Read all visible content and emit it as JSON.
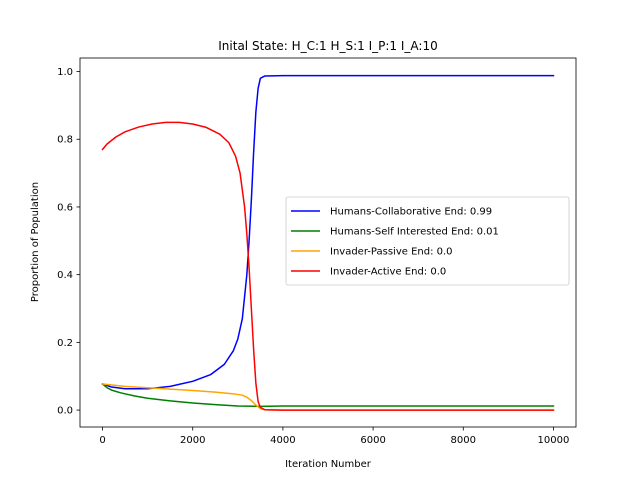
{
  "chart_data": {
    "type": "line",
    "title": "Inital State: H_C:1 H_S:1 I_P:1 I_A:10",
    "xlabel": "Iteration Number",
    "ylabel": "Proportion of Population",
    "xlim": [
      -500,
      10500
    ],
    "ylim": [
      -0.05,
      1.04
    ],
    "xticks": [
      0,
      2000,
      4000,
      6000,
      8000,
      10000
    ],
    "xtick_labels": [
      "0",
      "2000",
      "4000",
      "6000",
      "8000",
      "10000"
    ],
    "yticks": [
      0.0,
      0.2,
      0.4,
      0.6,
      0.8,
      1.0
    ],
    "ytick_labels": [
      "0.0",
      "0.2",
      "0.4",
      "0.6",
      "0.8",
      "1.0"
    ],
    "grid": false,
    "legend_position": "center-right",
    "series": [
      {
        "name": "Humans-Collaborative End: 0.99",
        "color": "#0000ff",
        "points": [
          [
            0,
            0.077
          ],
          [
            200,
            0.068
          ],
          [
            500,
            0.063
          ],
          [
            1000,
            0.063
          ],
          [
            1500,
            0.07
          ],
          [
            2000,
            0.085
          ],
          [
            2400,
            0.105
          ],
          [
            2700,
            0.135
          ],
          [
            2900,
            0.175
          ],
          [
            3000,
            0.21
          ],
          [
            3100,
            0.27
          ],
          [
            3200,
            0.4
          ],
          [
            3250,
            0.5
          ],
          [
            3300,
            0.62
          ],
          [
            3350,
            0.76
          ],
          [
            3400,
            0.88
          ],
          [
            3450,
            0.95
          ],
          [
            3500,
            0.98
          ],
          [
            3600,
            0.987
          ],
          [
            4000,
            0.988
          ],
          [
            10000,
            0.988
          ]
        ]
      },
      {
        "name": "Humans-Self Interested End: 0.01",
        "color": "#008000",
        "points": [
          [
            0,
            0.077
          ],
          [
            100,
            0.066
          ],
          [
            200,
            0.059
          ],
          [
            400,
            0.051
          ],
          [
            700,
            0.042
          ],
          [
            1000,
            0.035
          ],
          [
            1500,
            0.027
          ],
          [
            2000,
            0.021
          ],
          [
            2500,
            0.016
          ],
          [
            3000,
            0.012
          ],
          [
            3500,
            0.011
          ],
          [
            4000,
            0.012
          ],
          [
            10000,
            0.012
          ]
        ]
      },
      {
        "name": "Invader-Passive End: 0.0",
        "color": "#ffa500",
        "points": [
          [
            0,
            0.077
          ],
          [
            500,
            0.07
          ],
          [
            1000,
            0.066
          ],
          [
            1500,
            0.062
          ],
          [
            2000,
            0.058
          ],
          [
            2500,
            0.053
          ],
          [
            2900,
            0.048
          ],
          [
            3100,
            0.044
          ],
          [
            3200,
            0.038
          ],
          [
            3300,
            0.028
          ],
          [
            3400,
            0.015
          ],
          [
            3500,
            0.004
          ],
          [
            3600,
            0.001
          ],
          [
            4000,
            0.0
          ],
          [
            10000,
            0.0
          ]
        ]
      },
      {
        "name": "Invader-Active End: 0.0",
        "color": "#ff0000",
        "points": [
          [
            0,
            0.77
          ],
          [
            100,
            0.786
          ],
          [
            300,
            0.807
          ],
          [
            500,
            0.822
          ],
          [
            800,
            0.836
          ],
          [
            1100,
            0.845
          ],
          [
            1400,
            0.85
          ],
          [
            1700,
            0.85
          ],
          [
            2000,
            0.845
          ],
          [
            2300,
            0.835
          ],
          [
            2600,
            0.815
          ],
          [
            2800,
            0.79
          ],
          [
            2950,
            0.75
          ],
          [
            3050,
            0.7
          ],
          [
            3150,
            0.6
          ],
          [
            3200,
            0.52
          ],
          [
            3250,
            0.42
          ],
          [
            3300,
            0.3
          ],
          [
            3350,
            0.18
          ],
          [
            3400,
            0.08
          ],
          [
            3450,
            0.025
          ],
          [
            3500,
            0.008
          ],
          [
            3600,
            0.001
          ],
          [
            4000,
            0.0
          ],
          [
            10000,
            0.0
          ]
        ]
      }
    ]
  }
}
